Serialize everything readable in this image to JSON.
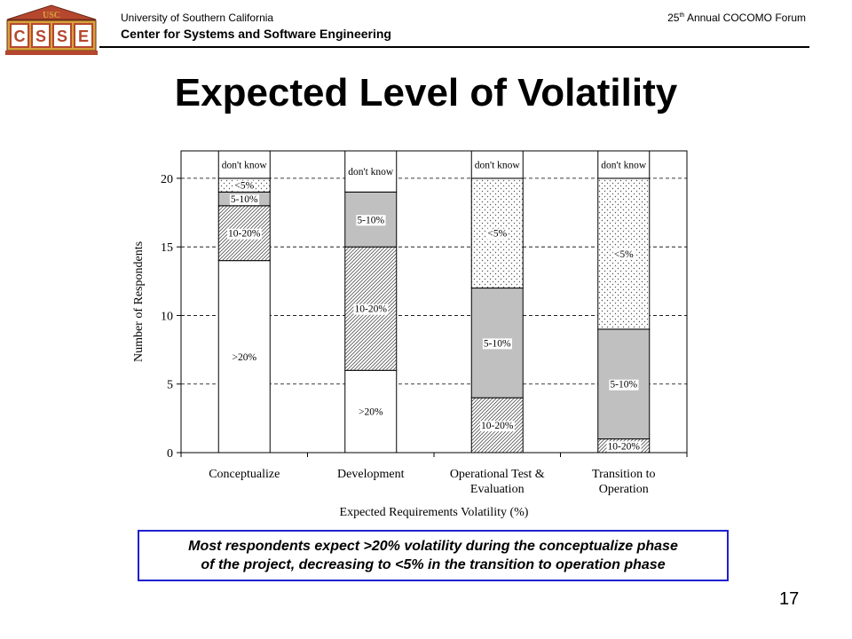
{
  "header": {
    "university": "University of Southern California",
    "center": "Center for Systems and Software Engineering",
    "forum_num": "25",
    "forum_sup": "th",
    "forum_rest": " Annual COCOMO Forum",
    "logo_top": "USC",
    "logo_letters": [
      "C",
      "S",
      "S",
      "E"
    ]
  },
  "title": "Expected Level of Volatility",
  "callout": {
    "line1": "Most respondents expect >20% volatility during the conceptualize phase",
    "line2": "of the project, decreasing to <5% in the transition to operation phase"
  },
  "page_number": "17",
  "colors": {
    "accent": "#1f1fd0",
    "logo_red": "#b5472e",
    "logo_gold": "#d8a23a"
  },
  "chart_data": {
    "type": "bar",
    "stacked": true,
    "title": "",
    "xlabel": "Expected Requirements Volatility (%)",
    "ylabel": "Number of Respondents",
    "ylim": [
      0,
      22
    ],
    "yticks": [
      0,
      5,
      10,
      15,
      20
    ],
    "grid": "horizontal-dashed",
    "categories": [
      [
        "Conceptualize"
      ],
      [
        "Development"
      ],
      [
        "Operational Test &",
        "Evaluation"
      ],
      [
        "Transition to",
        "Operation"
      ]
    ],
    "series": [
      {
        "name": ">20%",
        "pattern": "plain",
        "values": [
          14,
          6,
          0,
          0
        ]
      },
      {
        "name": "10-20%",
        "pattern": "hatch",
        "values": [
          4,
          9,
          4,
          1
        ]
      },
      {
        "name": "5-10%",
        "pattern": "gray",
        "values": [
          1,
          4,
          8,
          8
        ]
      },
      {
        "name": "<5%",
        "pattern": "dots",
        "values": [
          1,
          0,
          8,
          11
        ]
      },
      {
        "name": "don't know",
        "pattern": "plain",
        "values": [
          2,
          3,
          2,
          2
        ]
      }
    ]
  }
}
